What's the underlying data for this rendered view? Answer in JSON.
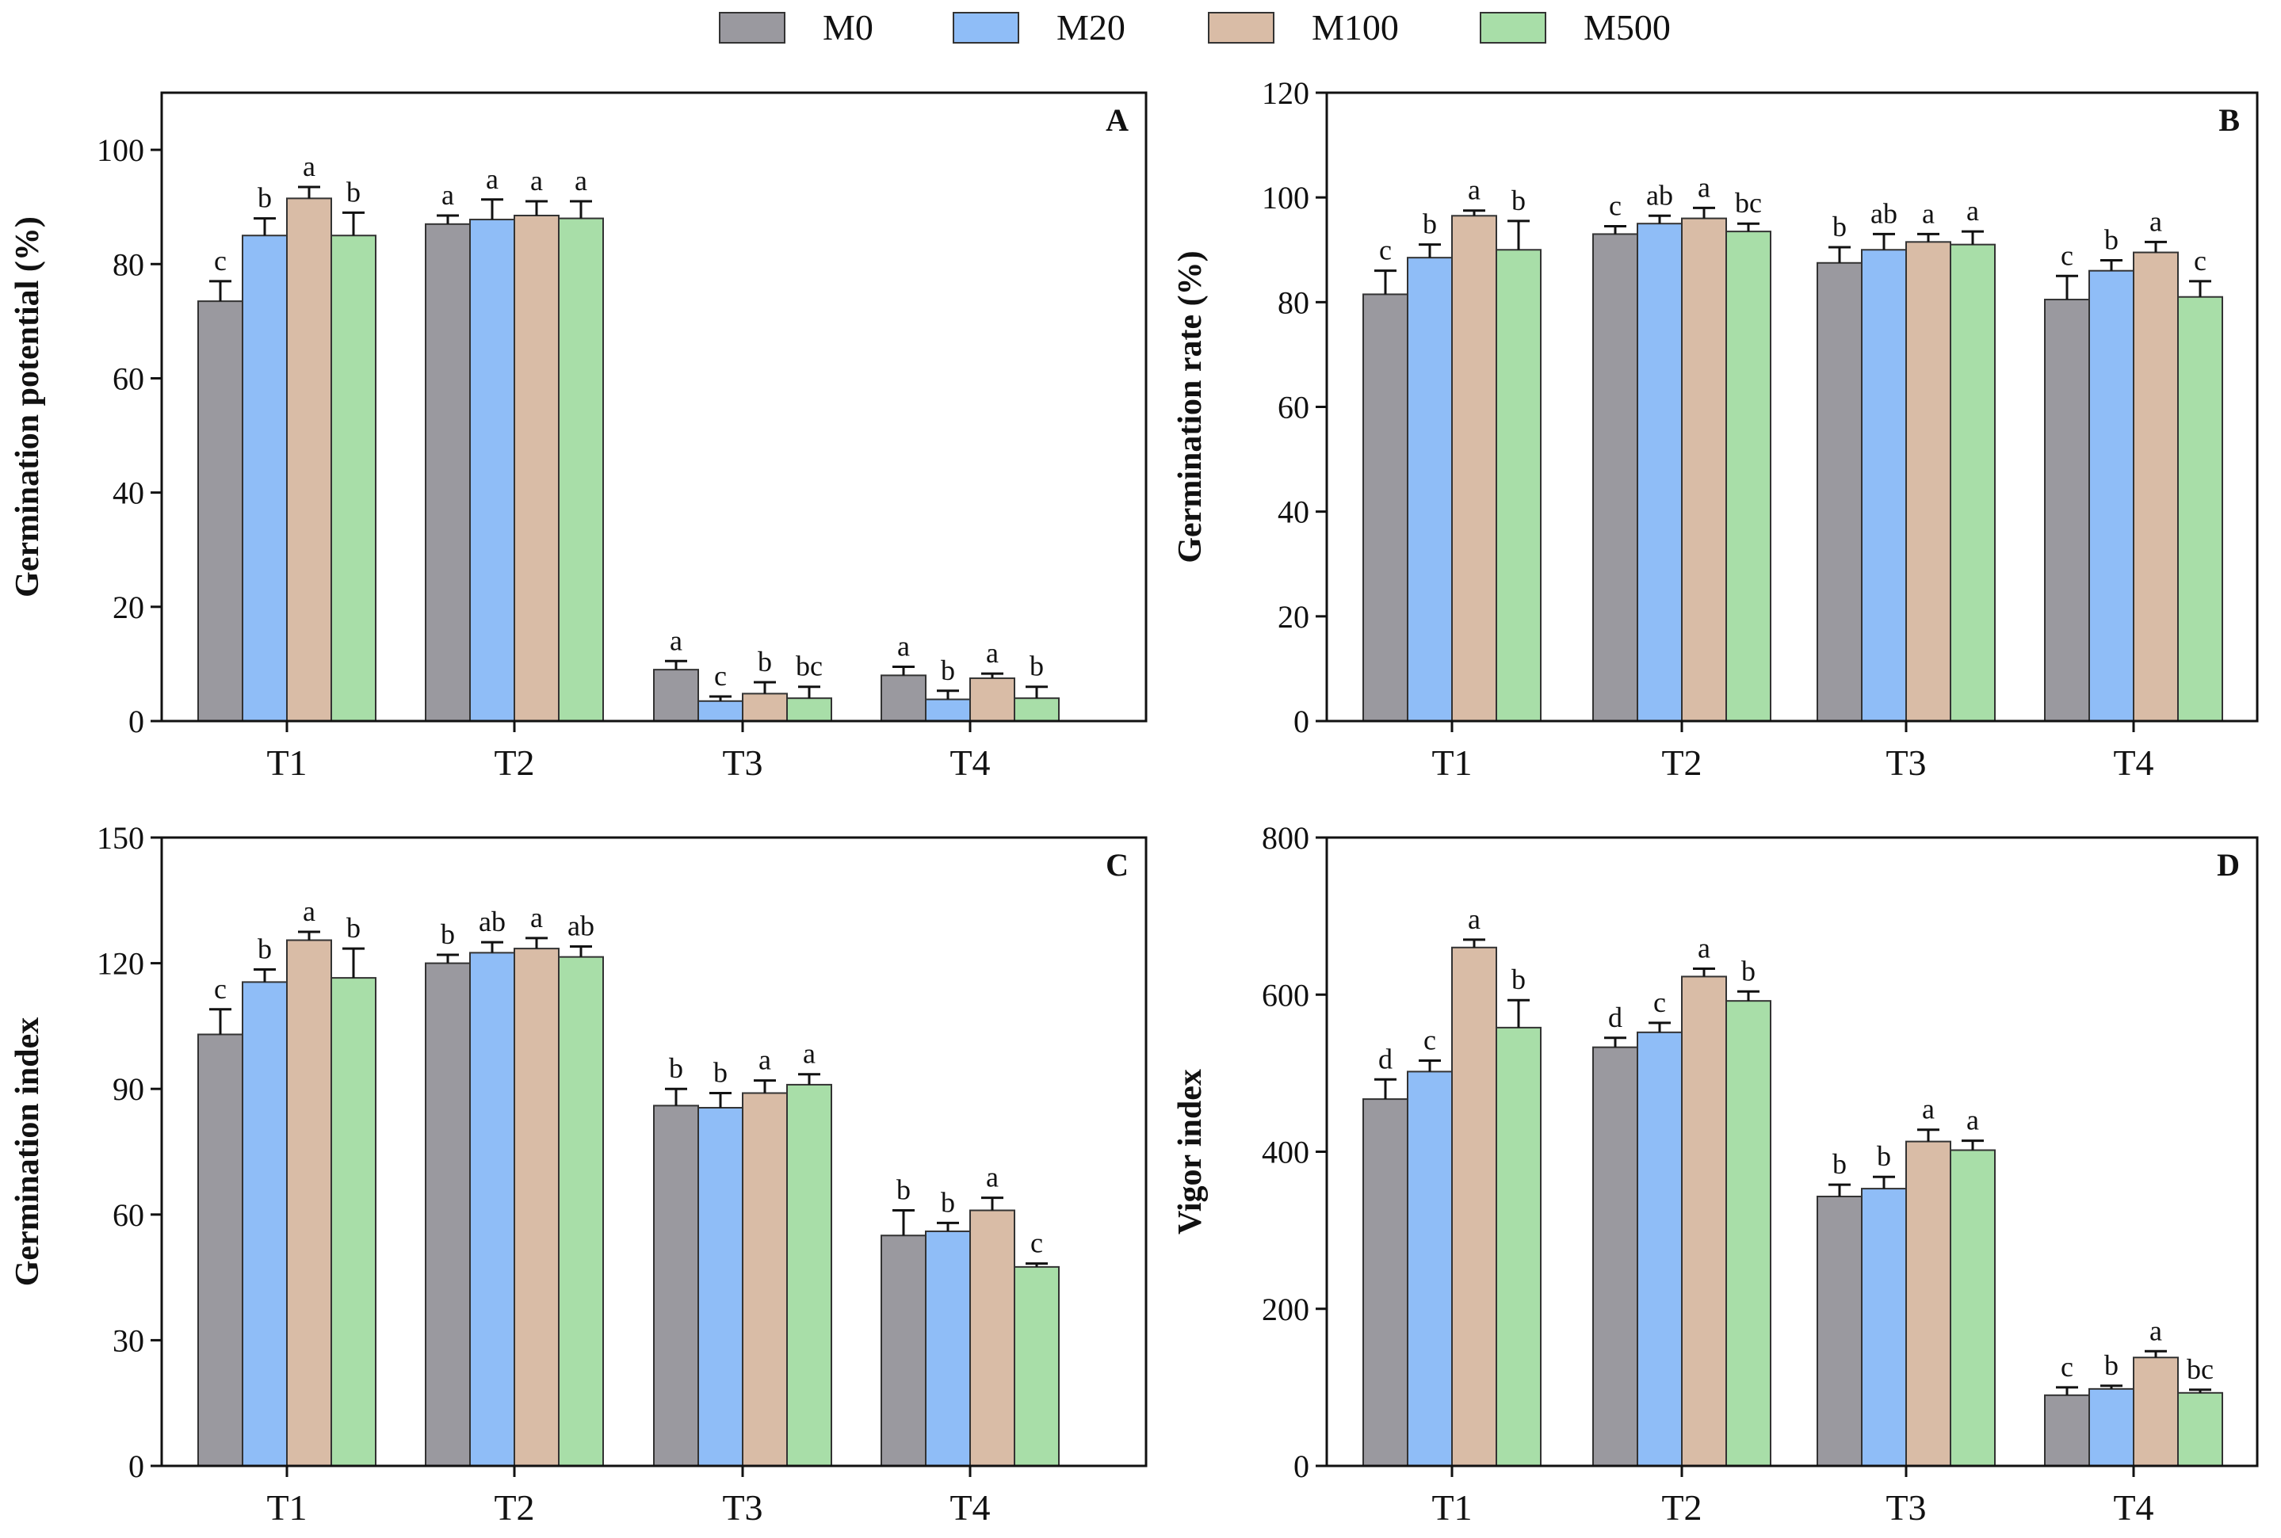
{
  "legend": {
    "items": [
      {
        "name": "M0",
        "color": "#9a999f"
      },
      {
        "name": "M20",
        "color": "#8fbdf7"
      },
      {
        "name": "M100",
        "color": "#d9bca6"
      },
      {
        "name": "M500",
        "color": "#a8dea8"
      }
    ]
  },
  "chart_data": [
    {
      "type": "bar",
      "panel": "A",
      "ylabel": "Germination potential (%)",
      "ylim": [
        0,
        110
      ],
      "yticks": [
        0,
        20,
        40,
        60,
        80,
        100
      ],
      "categories": [
        "T1",
        "T2",
        "T3",
        "T4"
      ],
      "series": [
        {
          "name": "M0",
          "values": [
            73.5,
            87.0,
            9.0,
            8.0
          ],
          "errors": [
            3.5,
            1.5,
            1.5,
            1.5
          ],
          "letters": [
            "c",
            "a",
            "a",
            "a"
          ]
        },
        {
          "name": "M20",
          "values": [
            85.0,
            87.8,
            3.5,
            3.8
          ],
          "errors": [
            3.0,
            3.5,
            0.8,
            1.5
          ],
          "letters": [
            "b",
            "a",
            "c",
            "b"
          ]
        },
        {
          "name": "M100",
          "values": [
            91.5,
            88.5,
            4.8,
            7.5
          ],
          "errors": [
            2.0,
            2.5,
            2.0,
            0.8
          ],
          "letters": [
            "a",
            "a",
            "b",
            "a"
          ]
        },
        {
          "name": "M500",
          "values": [
            85.0,
            88.0,
            4.0,
            4.0
          ],
          "errors": [
            4.0,
            3.0,
            2.0,
            2.0
          ],
          "letters": [
            "b",
            "a",
            "bc",
            "b"
          ]
        }
      ]
    },
    {
      "type": "bar",
      "panel": "B",
      "ylabel": "Germination rate (%)",
      "ylim": [
        0,
        120
      ],
      "yticks": [
        0,
        20,
        40,
        60,
        80,
        100,
        120
      ],
      "categories": [
        "T1",
        "T2",
        "T3",
        "T4"
      ],
      "series": [
        {
          "name": "M0",
          "values": [
            81.5,
            93.0,
            87.5,
            80.5
          ],
          "errors": [
            4.5,
            1.5,
            3.0,
            4.5
          ],
          "letters": [
            "c",
            "c",
            "b",
            "c"
          ]
        },
        {
          "name": "M20",
          "values": [
            88.5,
            95.0,
            90.0,
            86.0
          ],
          "errors": [
            2.5,
            1.5,
            3.0,
            2.0
          ],
          "letters": [
            "b",
            "ab",
            "ab",
            "b"
          ]
        },
        {
          "name": "M100",
          "values": [
            96.5,
            96.0,
            91.5,
            89.5
          ],
          "errors": [
            1.0,
            2.0,
            1.5,
            2.0
          ],
          "letters": [
            "a",
            "a",
            "a",
            "a"
          ]
        },
        {
          "name": "M500",
          "values": [
            90.0,
            93.5,
            91.0,
            81.0
          ],
          "errors": [
            5.5,
            1.5,
            2.5,
            3.0
          ],
          "letters": [
            "b",
            "bc",
            "a",
            "c"
          ]
        }
      ]
    },
    {
      "type": "bar",
      "panel": "C",
      "ylabel": "Germination index",
      "ylim": [
        0,
        150
      ],
      "yticks": [
        0,
        30,
        60,
        90,
        120,
        150
      ],
      "categories": [
        "T1",
        "T2",
        "T3",
        "T4"
      ],
      "series": [
        {
          "name": "M0",
          "values": [
            103.0,
            120.0,
            86.0,
            55.0
          ],
          "errors": [
            6.0,
            2.0,
            4.0,
            6.0
          ],
          "letters": [
            "c",
            "b",
            "b",
            "b"
          ]
        },
        {
          "name": "M20",
          "values": [
            115.5,
            122.5,
            85.5,
            56.0
          ],
          "errors": [
            3.0,
            2.5,
            3.5,
            2.0
          ],
          "letters": [
            "b",
            "ab",
            "b",
            "b"
          ]
        },
        {
          "name": "M100",
          "values": [
            125.5,
            123.5,
            89.0,
            61.0
          ],
          "errors": [
            2.0,
            2.5,
            3.0,
            3.0
          ],
          "letters": [
            "a",
            "a",
            "a",
            "a"
          ]
        },
        {
          "name": "M500",
          "values": [
            116.5,
            121.5,
            91.0,
            47.5
          ],
          "errors": [
            7.0,
            2.5,
            2.5,
            0.8
          ],
          "letters": [
            "b",
            "ab",
            "a",
            "c"
          ]
        }
      ]
    },
    {
      "type": "bar",
      "panel": "D",
      "ylabel": "Vigor  index",
      "ylim": [
        0,
        800
      ],
      "yticks": [
        0,
        200,
        400,
        600,
        800
      ],
      "categories": [
        "T1",
        "T2",
        "T3",
        "T4"
      ],
      "series": [
        {
          "name": "M0",
          "values": [
            467,
            533,
            343,
            90
          ],
          "errors": [
            25,
            12,
            15,
            10
          ],
          "letters": [
            "d",
            "d",
            "b",
            "c"
          ]
        },
        {
          "name": "M20",
          "values": [
            502,
            552,
            353,
            98
          ],
          "errors": [
            14,
            12,
            15,
            4
          ],
          "letters": [
            "c",
            "c",
            "b",
            "b"
          ]
        },
        {
          "name": "M100",
          "values": [
            660,
            623,
            413,
            138
          ],
          "errors": [
            10,
            10,
            15,
            8
          ],
          "letters": [
            "a",
            "a",
            "a",
            "a"
          ]
        },
        {
          "name": "M500",
          "values": [
            558,
            592,
            402,
            93
          ],
          "errors": [
            35,
            12,
            12,
            4
          ],
          "letters": [
            "b",
            "b",
            "a",
            "bc"
          ]
        }
      ]
    }
  ]
}
